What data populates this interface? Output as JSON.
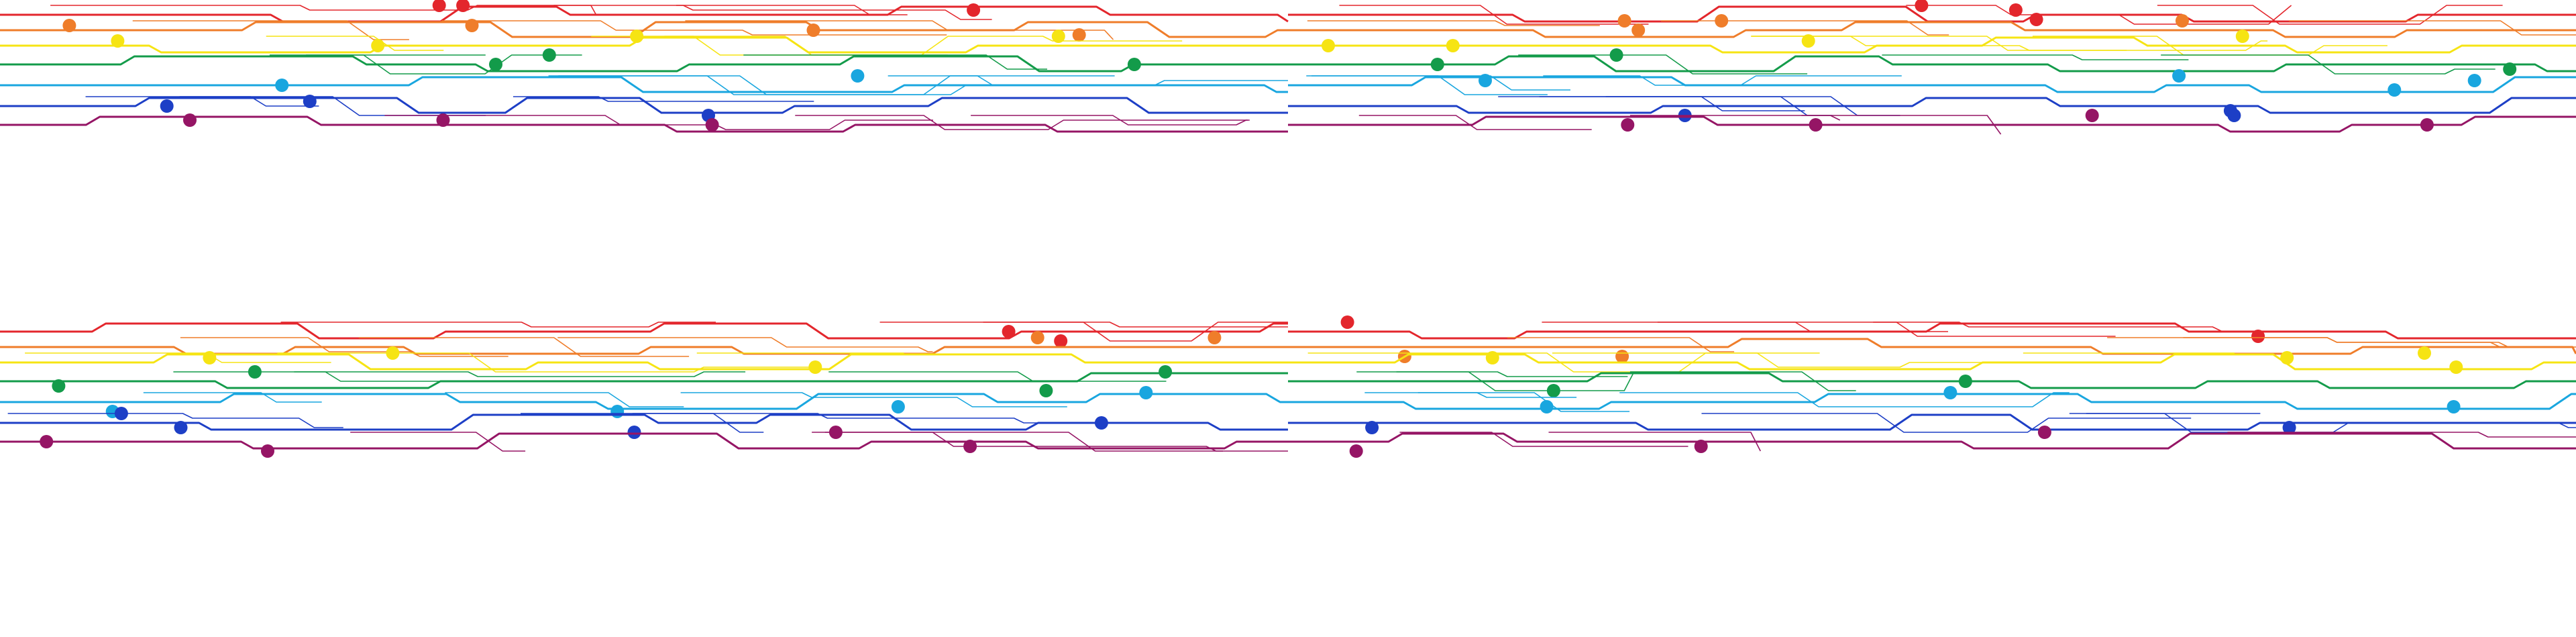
{
  "artwork": {
    "subject": "rainbow-circuit-trace-pattern",
    "background_color": "#ffffff",
    "layer_colors": [
      {
        "name": "red",
        "hex": "#e3262c"
      },
      {
        "name": "orange",
        "hex": "#ef7d2a"
      },
      {
        "name": "yellow",
        "hex": "#f6e413"
      },
      {
        "name": "green",
        "hex": "#139b4a"
      },
      {
        "name": "light-blue",
        "hex": "#19a6df"
      },
      {
        "name": "blue",
        "hex": "#1d3fc6"
      },
      {
        "name": "purple",
        "hex": "#951565"
      }
    ],
    "repeat_bands": 2,
    "repeat_columns": 2
  }
}
